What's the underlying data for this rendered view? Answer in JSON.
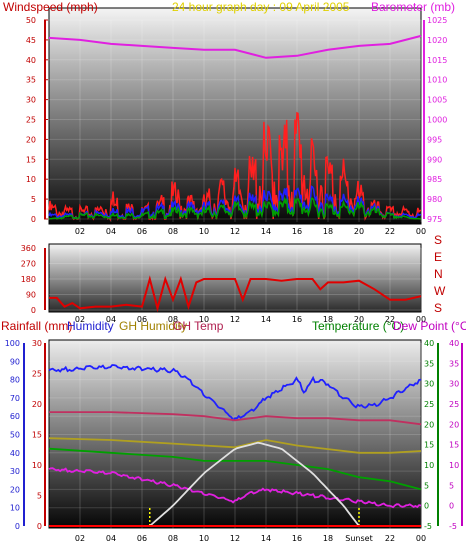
{
  "chart_data": [
    {
      "type": "line",
      "title": "24 hour graph day : 09 April 2005",
      "x_ticks": [
        "02",
        "04",
        "06",
        "08",
        "10",
        "12",
        "14",
        "16",
        "18",
        "20",
        "22",
        "00"
      ],
      "left_axis": {
        "label": "Windspeed (mph)",
        "range": [
          0,
          50
        ],
        "ticks": [
          "0",
          "5",
          "10",
          "15",
          "20",
          "25",
          "30",
          "35",
          "40",
          "45",
          "50"
        ]
      },
      "right_axis": {
        "label": "Barometer (mb)",
        "range": [
          975,
          1025
        ],
        "ticks": [
          "975",
          "980",
          "985",
          "990",
          "995",
          "1000",
          "1005",
          "1010",
          "1015",
          "1020",
          "1025"
        ]
      },
      "series": [
        {
          "name": "",
          "color": "#ff2020",
          "hours": [
            0,
            1,
            2,
            3,
            4,
            5,
            6,
            7,
            8,
            9,
            10,
            11,
            12,
            13,
            14,
            15,
            16,
            17,
            18,
            19,
            20,
            21,
            22,
            23,
            24
          ],
          "values": [
            3,
            2,
            2,
            2,
            5,
            3,
            2,
            3,
            6,
            4,
            4,
            7,
            8,
            10,
            16,
            15,
            20,
            12,
            12,
            10,
            6,
            3,
            2,
            2,
            2
          ]
        },
        {
          "name": "",
          "color": "#2020ff",
          "hours": [
            0,
            2,
            4,
            6,
            8,
            10,
            12,
            14,
            16,
            18,
            20,
            22,
            24
          ],
          "values": [
            1,
            1,
            2,
            2,
            3,
            3,
            4,
            5,
            6,
            5,
            4,
            1,
            1
          ]
        },
        {
          "name": "",
          "color": "#00a000",
          "hours": [
            0,
            2,
            4,
            6,
            8,
            10,
            12,
            14,
            16,
            18,
            20,
            22,
            24
          ],
          "values": [
            0,
            1,
            1,
            1,
            2,
            2,
            3,
            3,
            4,
            3,
            3,
            1,
            0
          ]
        },
        {
          "name": "",
          "color": "#e020e0",
          "axis": "right",
          "hours": [
            0,
            2,
            4,
            6,
            8,
            10,
            12,
            14,
            16,
            18,
            20,
            22,
            24
          ],
          "values": [
            1020.5,
            1020,
            1019,
            1018.5,
            1018,
            1017.5,
            1017.5,
            1015.5,
            1016,
            1017.5,
            1018.5,
            1019,
            1021
          ]
        }
      ]
    },
    {
      "type": "line",
      "x_ticks": [
        "02",
        "04",
        "06",
        "08",
        "10",
        "12",
        "14",
        "16",
        "18",
        "20",
        "22",
        "00"
      ],
      "left_axis": {
        "label": "",
        "range": [
          0,
          360
        ],
        "ticks": [
          "0",
          "90",
          "180",
          "270",
          "360"
        ]
      },
      "right_labels": [
        "S",
        "E",
        "N",
        "W",
        "S"
      ],
      "series": [
        {
          "name": "",
          "color": "#e00000",
          "hours": [
            0,
            0.5,
            1,
            1.5,
            2,
            3,
            4,
            5,
            6,
            6.5,
            7,
            7.5,
            8,
            8.5,
            9,
            9.5,
            10,
            11,
            12,
            12.5,
            13,
            14,
            15,
            16,
            17,
            17.5,
            18,
            19,
            20,
            21,
            22,
            23,
            24
          ],
          "values": [
            70,
            70,
            20,
            40,
            10,
            20,
            20,
            30,
            20,
            180,
            10,
            180,
            60,
            180,
            20,
            160,
            180,
            180,
            180,
            60,
            180,
            180,
            170,
            180,
            180,
            120,
            160,
            160,
            170,
            120,
            60,
            60,
            80
          ]
        }
      ]
    },
    {
      "type": "line",
      "x_ticks": [
        "02",
        "04",
        "06",
        "08",
        "10",
        "12",
        "14",
        "16",
        "18",
        "Sunset",
        "22",
        "00"
      ],
      "legend": [
        "Rainfall (mm)",
        "Humidity",
        "GH Humidity",
        "GH Temp",
        "Temperature (°C)",
        "Dew Point (°C)"
      ],
      "axes": {
        "rainfall": {
          "label": "Rainfall (mm)",
          "range": [
            0,
            30
          ],
          "ticks": [
            "0",
            "5",
            "10",
            "15",
            "20",
            "25",
            "30"
          ]
        },
        "humidity": {
          "label": "Humidity",
          "range": [
            0,
            100
          ],
          "ticks": [
            "0",
            "10",
            "20",
            "30",
            "40",
            "50",
            "60",
            "70",
            "80",
            "90",
            "100"
          ]
        },
        "temperature": {
          "label": "Temperature (°C)",
          "range": [
            -5,
            40
          ],
          "ticks": [
            "-5",
            "0",
            "5",
            "10",
            "15",
            "20",
            "25",
            "30",
            "35",
            "40"
          ]
        },
        "dew_point": {
          "label": "Dew Point (°C)",
          "range": [
            -5,
            40
          ],
          "ticks": [
            "-5",
            "0",
            "5",
            "10",
            "15",
            "20",
            "25",
            "30",
            "35",
            "40"
          ]
        }
      },
      "sunrise_hour": 6.5,
      "sunset_hour": 20,
      "series": [
        {
          "name": "Humidity",
          "color": "#2020ff",
          "axis": "humidity",
          "hours": [
            0,
            2,
            4,
            6,
            8,
            9,
            10,
            11,
            12,
            13,
            14,
            15,
            16,
            16.5,
            17,
            18,
            19,
            20,
            21,
            22,
            23,
            24
          ],
          "values": [
            85,
            86,
            87,
            86,
            85,
            80,
            72,
            65,
            58,
            62,
            70,
            75,
            80,
            73,
            80,
            78,
            70,
            65,
            66,
            70,
            75,
            80
          ]
        },
        {
          "name": "GH Humidity",
          "color": "#b0a020",
          "axis": "humidity",
          "hours": [
            0,
            4,
            8,
            10,
            12,
            14,
            16,
            18,
            20,
            22,
            24
          ],
          "values": [
            48,
            47,
            45,
            44,
            43,
            47,
            44,
            42,
            40,
            40,
            41
          ]
        },
        {
          "name": "GH Temp",
          "color": "#c03060",
          "axis": "temperature",
          "hours": [
            0,
            4,
            8,
            10,
            12,
            14,
            16,
            18,
            20,
            22,
            24
          ],
          "values": [
            23,
            23,
            22.5,
            22,
            21,
            22,
            21.5,
            21.5,
            21,
            21,
            20
          ]
        },
        {
          "name": "Temperature (°C)",
          "color": "#00a000",
          "axis": "temperature",
          "hours": [
            0,
            4,
            8,
            10,
            12,
            14,
            16,
            18,
            20,
            22,
            24
          ],
          "values": [
            14,
            13,
            12,
            11,
            11,
            11,
            10,
            9,
            7,
            6,
            4
          ]
        },
        {
          "name": "Dew Point (°C)",
          "color": "#e020e0",
          "axis": "dew_point",
          "hours": [
            0,
            4,
            8,
            10,
            12,
            13,
            14,
            16,
            18,
            20,
            22,
            24
          ],
          "values": [
            9,
            8,
            5,
            3,
            1,
            3,
            4,
            3,
            2,
            1,
            0,
            0
          ]
        },
        {
          "name": "",
          "color": "#e0e0e0",
          "axis": "temperature",
          "hours": [
            6.5,
            8,
            10,
            12,
            13.5,
            15,
            17,
            19,
            20
          ],
          "values": [
            -5,
            0,
            8,
            14,
            15.5,
            14,
            8,
            0,
            -5
          ]
        },
        {
          "name": "Rainfall (mm)",
          "color": "#ff0000",
          "axis": "rainfall",
          "hours": [
            0,
            24
          ],
          "values": [
            0,
            0
          ]
        }
      ]
    }
  ]
}
